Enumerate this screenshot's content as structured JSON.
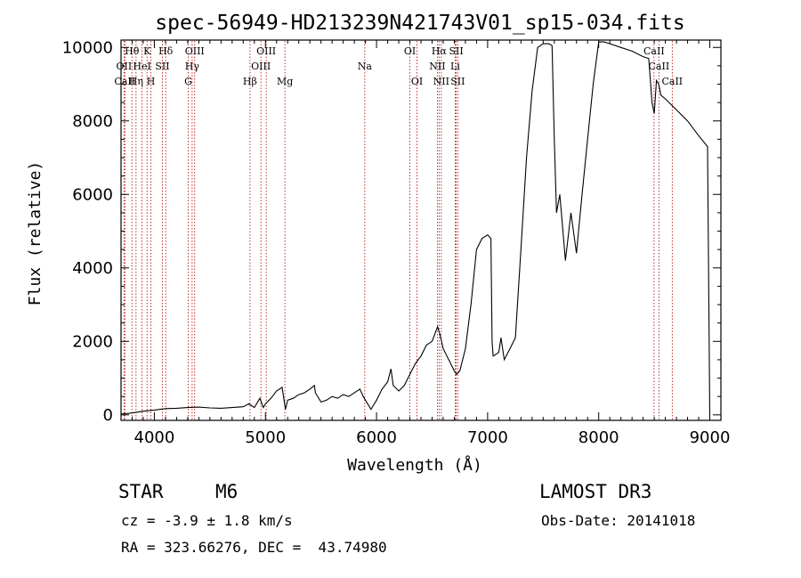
{
  "chart_data": {
    "type": "line",
    "title": "spec-56949-HD213239N421743V01_sp15-034.fits",
    "xlabel": "Wavelength (Å)",
    "ylabel": "Flux (relative)",
    "xlim": [
      3700,
      9100
    ],
    "ylim": [
      -150,
      10200
    ],
    "x_ticks": [
      4000,
      5000,
      6000,
      7000,
      8000,
      9000
    ],
    "x_tick_labels": [
      "4000",
      "5000",
      "6000",
      "7000",
      "8000",
      "9000"
    ],
    "y_ticks": [
      0,
      2000,
      4000,
      6000,
      8000,
      10000
    ],
    "y_tick_labels": [
      "0",
      "2000",
      "4000",
      "6000",
      "8000",
      "10000"
    ],
    "series": [
      {
        "name": "spectrum",
        "x": [
          3700,
          3800,
          3900,
          4000,
          4100,
          4200,
          4300,
          4400,
          4500,
          4600,
          4700,
          4800,
          4850,
          4900,
          4950,
          4980,
          5000,
          5050,
          5100,
          5150,
          5180,
          5200,
          5250,
          5300,
          5350,
          5400,
          5440,
          5450,
          5500,
          5550,
          5600,
          5650,
          5700,
          5750,
          5800,
          5850,
          5880,
          5900,
          5950,
          6000,
          6050,
          6100,
          6130,
          6150,
          6200,
          6250,
          6300,
          6350,
          6400,
          6450,
          6500,
          6550,
          6570,
          6600,
          6650,
          6700,
          6720,
          6750,
          6800,
          6850,
          6900,
          6950,
          7000,
          7030,
          7040,
          7050,
          7100,
          7120,
          7150,
          7200,
          7250,
          7300,
          7350,
          7400,
          7450,
          7500,
          7550,
          7580,
          7600,
          7620,
          7650,
          7700,
          7750,
          7800,
          7850,
          7900,
          7950,
          8000,
          8050,
          8100,
          8200,
          8300,
          8400,
          8450,
          8480,
          8500,
          8520,
          8540,
          8560,
          8600,
          8700,
          8800,
          8900,
          8980,
          9000
        ],
        "values": [
          20,
          50,
          100,
          130,
          170,
          180,
          200,
          210,
          190,
          180,
          200,
          220,
          300,
          200,
          450,
          200,
          300,
          450,
          650,
          750,
          150,
          400,
          450,
          550,
          600,
          700,
          800,
          600,
          350,
          400,
          500,
          450,
          550,
          500,
          600,
          700,
          500,
          400,
          150,
          400,
          700,
          900,
          1250,
          800,
          650,
          800,
          1100,
          1400,
          1600,
          1900,
          2000,
          2400,
          2200,
          1800,
          1500,
          1200,
          1100,
          1200,
          1800,
          3000,
          4500,
          4800,
          4900,
          4800,
          2000,
          1600,
          1700,
          2100,
          1500,
          1800,
          2100,
          4500,
          7000,
          8800,
          10000,
          10100,
          10100,
          10050,
          7500,
          5500,
          6000,
          4200,
          5500,
          4400,
          6000,
          7500,
          9000,
          10150,
          10150,
          10100,
          10000,
          9900,
          9750,
          9700,
          8500,
          8200,
          9100,
          9000,
          8700,
          8600,
          8300,
          8000,
          7600,
          7300,
          0
        ]
      }
    ],
    "line_markers": [
      {
        "label": "Hθ",
        "wl": 3798,
        "row": 1
      },
      {
        "label": "OII",
        "wl": 3727,
        "row": 2
      },
      {
        "label": "CaII",
        "wl": 3734,
        "row": 3
      },
      {
        "label": "K",
        "wl": 3934,
        "row": 1
      },
      {
        "label": "HeI",
        "wl": 3889,
        "row": 2
      },
      {
        "label": "Hη",
        "wl": 3835,
        "row": 3
      },
      {
        "label": "SII",
        "wl": 4072,
        "row": 2
      },
      {
        "label": "H",
        "wl": 3969,
        "row": 3
      },
      {
        "label": "Hδ",
        "wl": 4102,
        "row": 1
      },
      {
        "label": "OIII",
        "wl": 4363,
        "row": 1
      },
      {
        "label": "Hγ",
        "wl": 4340,
        "row": 2
      },
      {
        "label": "G",
        "wl": 4305,
        "row": 3
      },
      {
        "label": "OIII",
        "wl": 5007,
        "row": 1
      },
      {
        "label": "OIII",
        "wl": 4959,
        "row": 2
      },
      {
        "label": "Hβ",
        "wl": 4861,
        "row": 3
      },
      {
        "label": "Mg",
        "wl": 5175,
        "row": 3
      },
      {
        "label": "Na",
        "wl": 5894,
        "row": 2
      },
      {
        "label": "OI",
        "wl": 6300,
        "row": 1
      },
      {
        "label": "OI",
        "wl": 6364,
        "row": 3
      },
      {
        "label": "Hα",
        "wl": 6563,
        "row": 1
      },
      {
        "label": "NII",
        "wl": 6548,
        "row": 2
      },
      {
        "label": "NII",
        "wl": 6583,
        "row": 3
      },
      {
        "label": "SII",
        "wl": 6717,
        "row": 1
      },
      {
        "label": "Li",
        "wl": 6708,
        "row": 2
      },
      {
        "label": "SII",
        "wl": 6731,
        "row": 3
      },
      {
        "label": "CaII",
        "wl": 8498,
        "row": 1
      },
      {
        "label": "CaII",
        "wl": 8542,
        "row": 2
      },
      {
        "label": "CaII",
        "wl": 8662,
        "row": 3
      }
    ]
  },
  "info": {
    "object_class": "STAR",
    "subclass": "M6",
    "survey": "LAMOST DR3",
    "redshift": "cz = -3.9 ± 1.8 km/s",
    "obs_date": "Obs-Date: 20141018",
    "coords": "RA = 323.66276, DEC =  43.74980"
  }
}
